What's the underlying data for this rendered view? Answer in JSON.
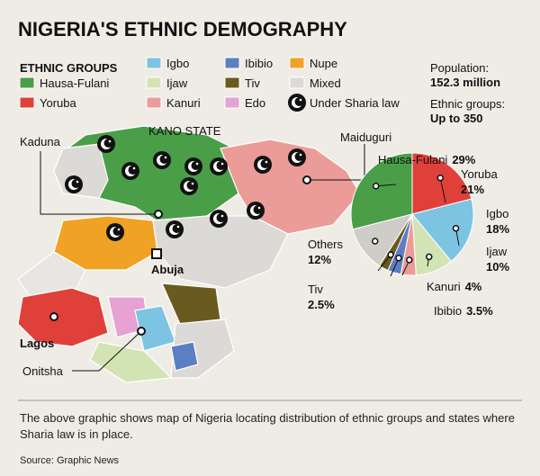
{
  "title": "NIGERIA'S ETHNIC DEMOGRAPHY",
  "legend": {
    "heading": "ETHNIC GROUPS",
    "items": [
      {
        "label": "Hausa-Fulani",
        "color": "#4a9e48"
      },
      {
        "label": "Yoruba",
        "color": "#e0403a"
      },
      {
        "label": "Igbo",
        "color": "#7cc4e2"
      },
      {
        "label": "Ijaw",
        "color": "#d3e4b4"
      },
      {
        "label": "Kanuri",
        "color": "#ec9c98"
      },
      {
        "label": "Ibibio",
        "color": "#5b7fc2"
      },
      {
        "label": "Tiv",
        "color": "#6b5a20"
      },
      {
        "label": "Edo",
        "color": "#e6a2d2"
      },
      {
        "label": "Nupe",
        "color": "#f0a224"
      },
      {
        "label": "Mixed",
        "color": "#dcdad6"
      },
      {
        "label": "Under Sharia law"
      }
    ]
  },
  "facts": [
    {
      "label": "Population:",
      "value": "152.3 million"
    },
    {
      "label": "Ethnic groups:",
      "value": "Up to 350"
    }
  ],
  "map_labels": [
    "Kaduna",
    "KANO STATE",
    "Maiduguri",
    "Abuja",
    "Lagos",
    "Onitsha"
  ],
  "chart_data": {
    "type": "pie",
    "categories": [
      "Hausa-Fulani",
      "Yoruba",
      "Igbo",
      "Ijaw",
      "Kanuri",
      "Ibibio",
      "Tiv",
      "Others"
    ],
    "values": [
      29,
      21,
      18,
      10,
      4,
      3.5,
      2.5,
      12
    ],
    "value_labels": [
      "29%",
      "21%",
      "18%",
      "10%",
      "4%",
      "3.5%",
      "2.5%",
      "12%"
    ],
    "colors": [
      "#4a9e48",
      "#e0403a",
      "#7cc4e2",
      "#d3e4b4",
      "#ec9c98",
      "#5b7fc2",
      "#6b5a20",
      "#cfcdc8"
    ]
  },
  "caption": "The above graphic shows map of Nigeria locating distribution of ethnic groups and states where Sharia law is in place.",
  "source": "Source: Graphic News"
}
